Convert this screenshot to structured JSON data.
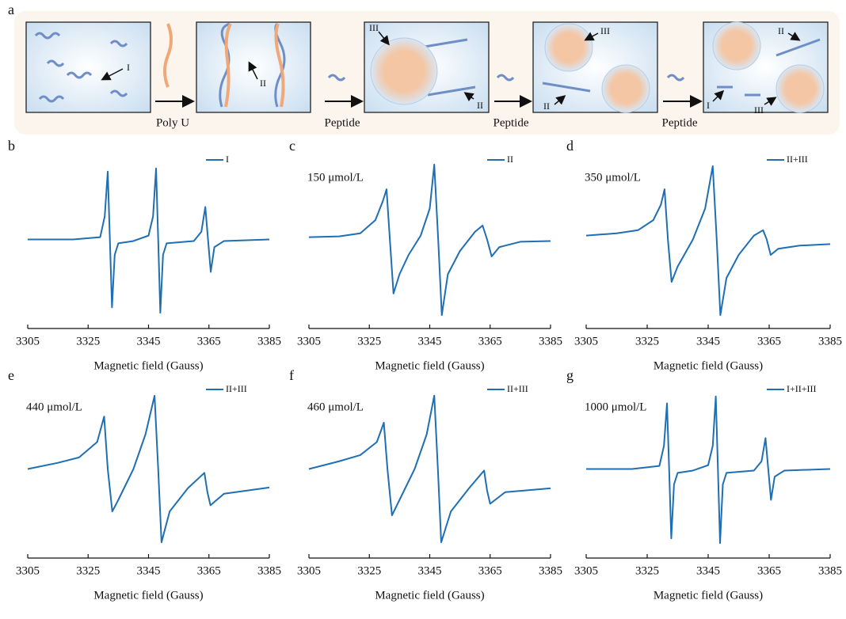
{
  "panel_a": {
    "label": "a",
    "steps": [
      "Poly U",
      "Peptide",
      "Peptide",
      "Peptide"
    ],
    "boxes": [
      [
        "I"
      ],
      [
        "II"
      ],
      [
        "III",
        "II"
      ],
      [
        "III",
        "II"
      ],
      [
        "II",
        "I",
        "III"
      ]
    ]
  },
  "chart_data": [
    {
      "type": "line",
      "panel": "b",
      "xlabel": "Magnetic field (Gauss)",
      "xlim": [
        3305,
        3385
      ],
      "xticks": [
        3305,
        3325,
        3345,
        3365,
        3385
      ],
      "ylim": [
        -1,
        1
      ],
      "x": [
        3305,
        3320,
        3329,
        3330.5,
        3331.5,
        3332.2,
        3332.9,
        3333.8,
        3335,
        3340,
        3345,
        3346.5,
        3347.5,
        3348.2,
        3348.9,
        3349.8,
        3351,
        3360,
        3362.5,
        3363.8,
        3364.7,
        3365.6,
        3366.8,
        3370,
        3385
      ],
      "series": [
        {
          "name": "I",
          "color": "#1f6fb2",
          "values": [
            0,
            0,
            0.03,
            0.3,
            0.88,
            0,
            -0.88,
            -0.2,
            -0.05,
            -0.02,
            0.05,
            0.3,
            0.92,
            0,
            -0.95,
            -0.2,
            -0.05,
            -0.02,
            0.1,
            0.42,
            0,
            -0.42,
            -0.1,
            -0.02,
            0
          ]
        }
      ]
    },
    {
      "type": "line",
      "panel": "c",
      "annotation": "150 μmol/L",
      "xlabel": "Magnetic field (Gauss)",
      "xlim": [
        3305,
        3385
      ],
      "xticks": [
        3305,
        3325,
        3345,
        3365,
        3385
      ],
      "ylim": [
        -1,
        1
      ],
      "x": [
        3305,
        3315,
        3322,
        3327,
        3329.5,
        3330.7,
        3331.8,
        3333,
        3335,
        3338,
        3342,
        3345,
        3346.5,
        3347.8,
        3349,
        3351,
        3355,
        3360,
        3362.5,
        3364,
        3365.5,
        3368,
        3375,
        3385
      ],
      "series": [
        {
          "name": "II",
          "color": "#1f6fb2",
          "values": [
            0.03,
            0.04,
            0.08,
            0.25,
            0.5,
            0.65,
            0,
            -0.7,
            -0.45,
            -0.2,
            0.05,
            0.4,
            0.97,
            0,
            -0.98,
            -0.45,
            -0.15,
            0.1,
            0.18,
            0,
            -0.22,
            -0.1,
            -0.03,
            -0.02
          ]
        }
      ]
    },
    {
      "type": "line",
      "panel": "d",
      "annotation": "350 μmol/L",
      "xlabel": "Magnetic field (Gauss)",
      "xlim": [
        3305,
        3385
      ],
      "xticks": [
        3305,
        3325,
        3345,
        3365,
        3385
      ],
      "ylim": [
        -1,
        1
      ],
      "x": [
        3305,
        3315,
        3322,
        3327,
        3329.5,
        3330.7,
        3331.8,
        3333,
        3335,
        3340,
        3344,
        3346.5,
        3347.8,
        3349,
        3351,
        3355,
        3360,
        3363,
        3364.2,
        3365.5,
        3368,
        3375,
        3385
      ],
      "series": [
        {
          "name": "II+III",
          "color": "#1f6fb2",
          "values": [
            0.05,
            0.08,
            0.12,
            0.25,
            0.45,
            0.65,
            0,
            -0.55,
            -0.35,
            0,
            0.4,
            0.95,
            0,
            -0.98,
            -0.5,
            -0.2,
            0.05,
            0.12,
            0,
            -0.2,
            -0.12,
            -0.08,
            -0.06
          ]
        }
      ]
    },
    {
      "type": "line",
      "panel": "e",
      "annotation": "440 μmol/L",
      "xlabel": "Magnetic field (Gauss)",
      "xlim": [
        3305,
        3385
      ],
      "xticks": [
        3305,
        3325,
        3345,
        3365,
        3385
      ],
      "ylim": [
        -1,
        1
      ],
      "x": [
        3305,
        3315,
        3322,
        3328,
        3330.3,
        3331.5,
        3333,
        3335,
        3340,
        3344,
        3347,
        3348.2,
        3349.3,
        3352,
        3358,
        3363.5,
        3364.5,
        3365.5,
        3370,
        3385
      ],
      "series": [
        {
          "name": "II+III",
          "color": "#1f6fb2",
          "values": [
            0,
            0.08,
            0.15,
            0.35,
            0.68,
            0,
            -0.55,
            -0.4,
            0,
            0.45,
            0.95,
            0,
            -0.95,
            -0.55,
            -0.25,
            -0.05,
            -0.3,
            -0.47,
            -0.32,
            -0.24
          ]
        }
      ]
    },
    {
      "type": "line",
      "panel": "f",
      "annotation": "460 μmol/L",
      "xlabel": "Magnetic field (Gauss)",
      "xlim": [
        3305,
        3385
      ],
      "xticks": [
        3305,
        3325,
        3345,
        3365,
        3385
      ],
      "ylim": [
        -1,
        1
      ],
      "x": [
        3305,
        3315,
        3322,
        3327.5,
        3329.8,
        3331,
        3332.5,
        3335,
        3340,
        3344,
        3346.5,
        3347.7,
        3348.8,
        3352,
        3358,
        3363,
        3364,
        3365,
        3370,
        3385
      ],
      "series": [
        {
          "name": "II+III",
          "color": "#1f6fb2",
          "values": [
            0,
            0.1,
            0.18,
            0.35,
            0.6,
            0,
            -0.6,
            -0.4,
            0,
            0.45,
            0.95,
            0,
            -0.95,
            -0.55,
            -0.25,
            -0.02,
            -0.28,
            -0.45,
            -0.3,
            -0.25
          ]
        }
      ]
    },
    {
      "type": "line",
      "panel": "g",
      "annotation": "1000 μmol/L",
      "xlabel": "Magnetic field (Gauss)",
      "xlim": [
        3305,
        3385
      ],
      "xticks": [
        3305,
        3325,
        3345,
        3365,
        3385
      ],
      "ylim": [
        -1,
        1
      ],
      "x": [
        3305,
        3320,
        3329,
        3330.5,
        3331.5,
        3332.2,
        3332.9,
        3333.8,
        3335,
        3340,
        3345,
        3346.5,
        3347.5,
        3348.2,
        3348.9,
        3349.8,
        3351,
        3360,
        3362.5,
        3363.8,
        3364.7,
        3365.6,
        3366.8,
        3370,
        3385
      ],
      "series": [
        {
          "name": "I+II+III",
          "color": "#1f6fb2",
          "values": [
            0,
            0,
            0.04,
            0.3,
            0.85,
            0,
            -0.9,
            -0.2,
            -0.05,
            -0.02,
            0.05,
            0.3,
            0.94,
            0,
            -0.96,
            -0.2,
            -0.05,
            -0.02,
            0.1,
            0.4,
            0,
            -0.4,
            -0.1,
            -0.02,
            0
          ]
        }
      ]
    }
  ]
}
